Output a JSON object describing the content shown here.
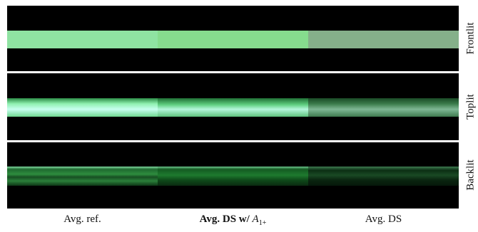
{
  "figure": {
    "rows": [
      {
        "label": "Frontlit"
      },
      {
        "label": "Toplit"
      },
      {
        "label": "Backlit"
      }
    ],
    "columns": [
      {
        "label": "Avg. ref."
      },
      {
        "label_bold": "Avg. DS w/",
        "label_math": "A",
        "label_sub": "1+"
      },
      {
        "label": "Avg. DS"
      }
    ]
  }
}
